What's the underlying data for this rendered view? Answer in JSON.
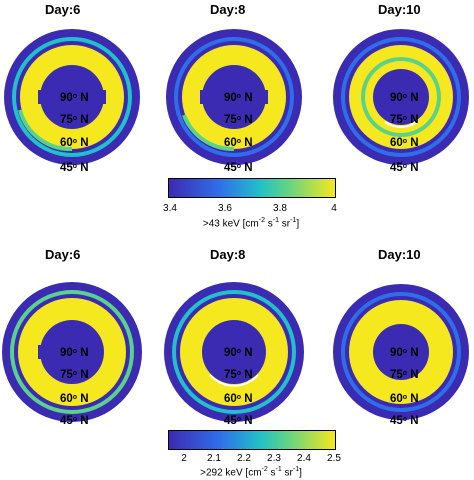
{
  "panels": [
    {
      "title": "Day:6"
    },
    {
      "title": "Day:8"
    },
    {
      "title": "Day:10"
    },
    {
      "title": "Day:6"
    },
    {
      "title": "Day:8"
    },
    {
      "title": "Day:10"
    }
  ],
  "latitudes": [
    {
      "deg": "90",
      "suffix": " N"
    },
    {
      "deg": "75",
      "suffix": " N"
    },
    {
      "deg": "60",
      "suffix": " N"
    },
    {
      "deg": "45",
      "suffix": " N"
    }
  ],
  "degree_symbol": "o",
  "colorbars": [
    {
      "ticks": [
        "3.4",
        "3.6",
        "3.8",
        "4"
      ],
      "caption_main": ">43 keV [cm",
      "caption_exp1": "-2",
      "caption_mid1": " s",
      "caption_exp2": "-1",
      "caption_mid2": " sr",
      "caption_exp3": "-1",
      "caption_end": "]"
    },
    {
      "ticks": [
        "2",
        "2.1",
        "2.2",
        "2.3",
        "2.4",
        "2.5"
      ],
      "caption_main": ">292 keV [cm",
      "caption_exp1": "-2",
      "caption_mid1": " s",
      "caption_exp2": "-1",
      "caption_mid2": " sr",
      "caption_exp3": "-1",
      "caption_end": "]"
    }
  ],
  "colors": {
    "dark": "#3b2bb3",
    "blue": "#2f6ee8",
    "cyan": "#22c0c8",
    "green": "#5bd28a",
    "yellow": "#f5e81e"
  }
}
